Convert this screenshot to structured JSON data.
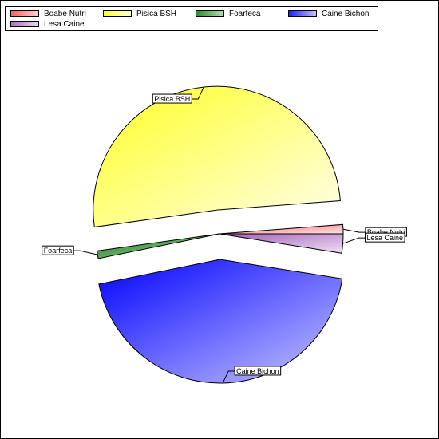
{
  "chart_data": {
    "type": "pie",
    "exploded": true,
    "legend_position": "top",
    "series": [
      {
        "name": "Boabe Nutri",
        "value": 1.2,
        "color": "#ff7f7f"
      },
      {
        "name": "Pisica BSH",
        "value": 51.0,
        "color": "#ffff33"
      },
      {
        "name": "Foarfeca",
        "value": 1.0,
        "color": "#2e8b2e"
      },
      {
        "name": "Caine Bichon",
        "value": 44.3,
        "color": "#2020ff"
      },
      {
        "name": "Lesa Caine",
        "value": 2.5,
        "color": "#b070c0"
      }
    ]
  }
}
